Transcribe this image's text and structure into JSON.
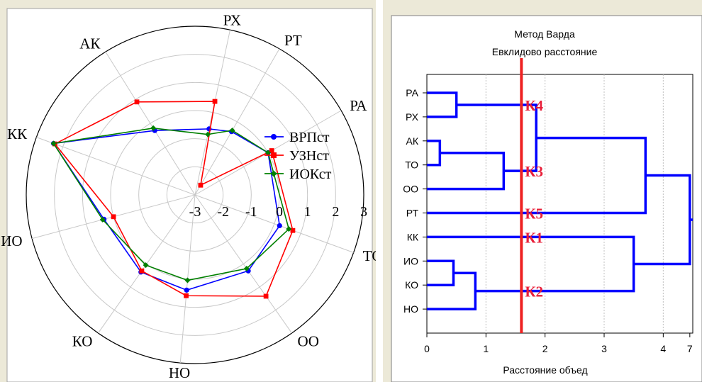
{
  "chart_data": [
    {
      "type": "radar",
      "axes": [
        "РХ",
        "РТ",
        "РА",
        "ТО",
        "ОО",
        "НО",
        "КО",
        "ИО",
        "КК",
        "АК"
      ],
      "r_ticks": [
        "-3",
        "-2",
        "-1",
        "0",
        "1",
        "2",
        "3"
      ],
      "rlim": [
        -3,
        3
      ],
      "grid": true,
      "legend_position": "right",
      "series": [
        {
          "name": "ВРПст",
          "color": "#0000ff",
          "marker": "circle",
          "values": [
            -0.6,
            -0.4,
            0.0,
            0.2,
            0.3,
            0.4,
            0.35,
            0.35,
            2.35,
            -0.3
          ]
        },
        {
          "name": "УЗНст",
          "color": "#ff0000",
          "marker": "square",
          "values": [
            0.4,
            -2.6,
            0.15,
            0.7,
            1.4,
            0.6,
            0.3,
            0.0,
            2.3,
            0.9
          ]
        },
        {
          "name": "ИОКст",
          "color": "#008000",
          "marker": "diamond",
          "values": [
            -0.8,
            -0.35,
            0.0,
            0.55,
            0.2,
            0.05,
            0.05,
            0.4,
            2.35,
            -0.2
          ]
        }
      ]
    },
    {
      "type": "dendrogram",
      "title": "Метод Варда",
      "subtitle": "Евклидово расстояние",
      "xlabel": "Расстояние объед",
      "xticks": [
        "0",
        "1",
        "2",
        "3",
        "4",
        "7"
      ],
      "xlim": [
        0,
        4.5
      ],
      "leaves": [
        "РА",
        "РХ",
        "АК",
        "ТО",
        "ОО",
        "РТ",
        "КК",
        "ИО",
        "КО",
        "НО"
      ],
      "merges": [
        {
          "a": "РА",
          "b": "РХ",
          "height": 0.5
        },
        {
          "a": "АК",
          "b": "ТО",
          "height": 0.22
        },
        {
          "a": "АК+ТО",
          "b": "ОО",
          "height": 1.3
        },
        {
          "a": "ИО",
          "b": "КО",
          "height": 0.45
        },
        {
          "a": "ИО+КО",
          "b": "НО",
          "height": 0.82
        },
        {
          "a": "РА+РХ",
          "b": "РТ",
          "height": 3.7
        },
        {
          "a": "КК",
          "b": "ИО+КО+НО",
          "height": 3.5
        },
        {
          "a": "top",
          "b": "bottom",
          "height": 4.45
        }
      ],
      "cut_line": {
        "x": 1.6,
        "color": "#ee2222"
      },
      "cluster_labels": [
        "К4",
        "К3",
        "К5",
        "К1",
        "К2"
      ],
      "link_color": "#0000ff",
      "grid": true
    }
  ]
}
